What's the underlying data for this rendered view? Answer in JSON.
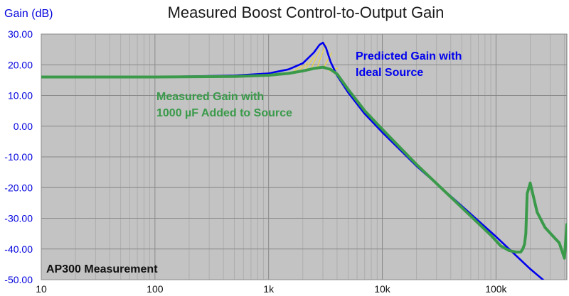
{
  "chart_data": {
    "type": "line",
    "title": "Measured Boost Control-to-Output Gain",
    "ylabel": "Gain (dB)",
    "xscale": "log",
    "xlim": [
      10,
      420000
    ],
    "ylim": [
      -50,
      30
    ],
    "yticks": [
      "30.00",
      "20.00",
      "10.00",
      "0.00",
      "-10.00",
      "-20.00",
      "-30.00",
      "-40.00",
      "-50.00"
    ],
    "ytick_values": [
      30,
      20,
      10,
      0,
      -10,
      -20,
      -30,
      -40,
      -50
    ],
    "xticks": [
      "10",
      "100",
      "1k",
      "10k",
      "100k"
    ],
    "xtick_values": [
      10,
      100,
      1000,
      10000,
      100000
    ],
    "grid": true,
    "background": "#c3c3c3",
    "series": [
      {
        "key": "predicted",
        "color": "#0000ee",
        "x": [
          10,
          100,
          500,
          1000,
          1500,
          2000,
          2500,
          2800,
          3000,
          3200,
          3500,
          4000,
          5000,
          7000,
          10000,
          20000,
          50000,
          100000,
          200000,
          300000
        ],
        "y": [
          16,
          16,
          16.5,
          17.2,
          18.5,
          20.5,
          24,
          26.5,
          27.2,
          25.5,
          21,
          16.5,
          11,
          4,
          -2,
          -13,
          -26,
          -36,
          -46.5,
          -52
        ]
      },
      {
        "key": "measured",
        "color": "#3a9a4a",
        "x": [
          10,
          100,
          500,
          1000,
          1500,
          2000,
          2500,
          3000,
          3500,
          4000,
          5000,
          7000,
          10000,
          20000,
          50000,
          90000,
          110000,
          130000,
          150000,
          165000,
          172000,
          178000,
          183000,
          188000,
          200000,
          230000,
          270000,
          320000,
          360000,
          400000,
          420000
        ],
        "y": [
          16,
          16,
          16.2,
          16.6,
          17.2,
          18,
          18.8,
          19.2,
          18.5,
          17,
          12,
          5,
          -1,
          -12.5,
          -26.5,
          -35.5,
          -39,
          -40.5,
          -41,
          -41,
          -40,
          -38.5,
          -35,
          -22,
          -18.5,
          -28,
          -33,
          -36,
          -38,
          -43,
          -32
        ]
      }
    ],
    "annotations": {
      "predicted_line1": "Predicted Gain with",
      "predicted_line2": "Ideal Source",
      "measured_line1": "Measured Gain with",
      "measured_line2": "1000 µF Added to Source",
      "footer": "AP300 Measurement"
    },
    "colors": {
      "title": "#1a1a1a",
      "axis_text": "#0000dd",
      "predicted": "#0000ee",
      "measured": "#3a9a4a",
      "fill_between": "#f0d43a"
    }
  }
}
